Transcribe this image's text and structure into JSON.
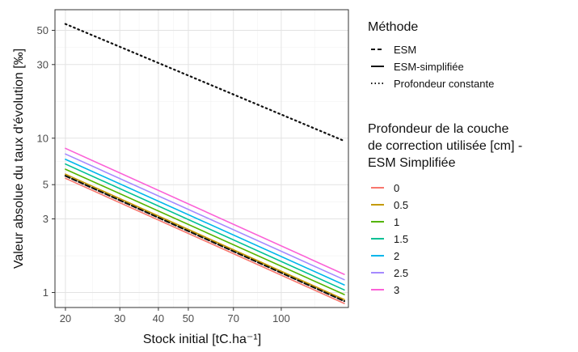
{
  "chart_data": {
    "type": "line",
    "xlabel": "Stock initial [tC.ha⁻¹]",
    "ylabel": "Valeur absolue du taux d'évolution [‰]",
    "xscale": "log",
    "yscale": "log",
    "xlim": [
      18.5,
      165
    ],
    "ylim": [
      0.8,
      68
    ],
    "xticks": [
      20,
      30,
      40,
      50,
      70,
      100
    ],
    "xtick_labels": [
      "20",
      "30",
      "40",
      "50",
      "70",
      "100"
    ],
    "yticks": [
      1,
      3,
      5,
      10,
      30,
      50
    ],
    "ytick_labels": [
      "1",
      "3",
      "5",
      "10",
      "30",
      "50"
    ],
    "grid": true,
    "legend_position": "right",
    "method_legend": {
      "title": "Méthode",
      "entries": [
        {
          "label": "ESM",
          "style": "dashed"
        },
        {
          "label": "ESM-simplifiée",
          "style": "solid"
        },
        {
          "label": "Profondeur constante",
          "style": "dotted"
        }
      ]
    },
    "depth_legend": {
      "title_lines": [
        "Profondeur de la couche",
        "de correction utilisée [cm] -",
        "ESM Simplifiée"
      ],
      "entries": [
        {
          "label": "0",
          "color": "#f8766d"
        },
        {
          "label": "0.5",
          "color": "#c49a00"
        },
        {
          "label": "1",
          "color": "#53b400"
        },
        {
          "label": "1.5",
          "color": "#00c094"
        },
        {
          "label": "2",
          "color": "#00b6eb"
        },
        {
          "label": "2.5",
          "color": "#a58aff"
        },
        {
          "label": "3",
          "color": "#fb61d7"
        }
      ]
    },
    "series": [
      {
        "method": "Profondeur constante",
        "style": "dotted",
        "color": "#111111",
        "x": [
          20,
          160
        ],
        "y": [
          55,
          9.6
        ]
      },
      {
        "method": "ESM",
        "style": "dashed",
        "color": "#111111",
        "x": [
          20,
          160
        ],
        "y": [
          5.7,
          0.88
        ]
      },
      {
        "method": "ESM-simplifiée",
        "depth": "0",
        "style": "solid",
        "color": "#f8766d",
        "x": [
          20,
          160
        ],
        "y": [
          5.5,
          0.85
        ]
      },
      {
        "method": "ESM-simplifiée",
        "depth": "0.5",
        "style": "solid",
        "color": "#c49a00",
        "x": [
          20,
          160
        ],
        "y": [
          5.85,
          0.9
        ]
      },
      {
        "method": "ESM-simplifiée",
        "depth": "1",
        "style": "solid",
        "color": "#53b400",
        "x": [
          20,
          160
        ],
        "y": [
          6.3,
          0.97
        ]
      },
      {
        "method": "ESM-simplifiée",
        "depth": "1.5",
        "style": "solid",
        "color": "#00c094",
        "x": [
          20,
          160
        ],
        "y": [
          6.8,
          1.04
        ]
      },
      {
        "method": "ESM-simplifiée",
        "depth": "2",
        "style": "solid",
        "color": "#00b6eb",
        "x": [
          20,
          160
        ],
        "y": [
          7.3,
          1.12
        ]
      },
      {
        "method": "ESM-simplifiée",
        "depth": "2.5",
        "style": "solid",
        "color": "#a58aff",
        "x": [
          20,
          160
        ],
        "y": [
          7.9,
          1.21
        ]
      },
      {
        "method": "ESM-simplifiée",
        "depth": "3",
        "style": "solid",
        "color": "#fb61d7",
        "x": [
          20,
          160
        ],
        "y": [
          8.6,
          1.31
        ]
      }
    ]
  }
}
